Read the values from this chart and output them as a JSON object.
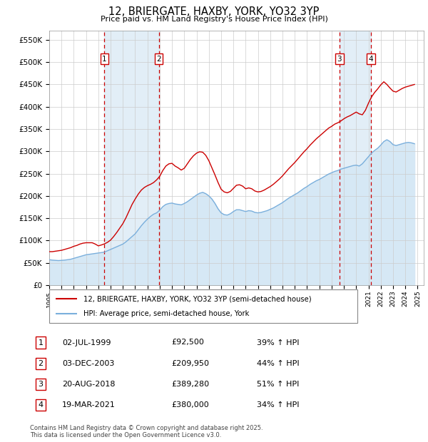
{
  "title": "12, BRIERGATE, HAXBY, YORK, YO32 3YP",
  "subtitle": "Price paid vs. HM Land Registry's House Price Index (HPI)",
  "ylim": [
    0,
    570000
  ],
  "yticks": [
    0,
    50000,
    100000,
    150000,
    200000,
    250000,
    300000,
    350000,
    400000,
    450000,
    500000,
    550000
  ],
  "xlim_start": 1995.0,
  "xlim_end": 2025.5,
  "sale_color": "#cc0000",
  "hpi_color": "#7aafdc",
  "hpi_fill_color": "#d6e8f5",
  "grid_color": "#cccccc",
  "purchases": [
    {
      "date_num": 1999.5,
      "price": 92500,
      "label": "1"
    },
    {
      "date_num": 2003.92,
      "price": 209950,
      "label": "2"
    },
    {
      "date_num": 2018.63,
      "price": 389280,
      "label": "3"
    },
    {
      "date_num": 2021.21,
      "price": 380000,
      "label": "4"
    }
  ],
  "legend_entries": [
    {
      "label": "12, BRIERGATE, HAXBY, YORK, YO32 3YP (semi-detached house)",
      "color": "#cc0000"
    },
    {
      "label": "HPI: Average price, semi-detached house, York",
      "color": "#7aafdc"
    }
  ],
  "table_rows": [
    {
      "num": "1",
      "date": "02-JUL-1999",
      "price": "£92,500",
      "hpi": "39% ↑ HPI"
    },
    {
      "num": "2",
      "date": "03-DEC-2003",
      "price": "£209,950",
      "hpi": "44% ↑ HPI"
    },
    {
      "num": "3",
      "date": "20-AUG-2018",
      "price": "£389,280",
      "hpi": "51% ↑ HPI"
    },
    {
      "num": "4",
      "date": "19-MAR-2021",
      "price": "£380,000",
      "hpi": "34% ↑ HPI"
    }
  ],
  "footer": "Contains HM Land Registry data © Crown copyright and database right 2025.\nThis data is licensed under the Open Government Licence v3.0.",
  "hpi_data": {
    "years": [
      1995.0,
      1995.25,
      1995.5,
      1995.75,
      1996.0,
      1996.25,
      1996.5,
      1996.75,
      1997.0,
      1997.25,
      1997.5,
      1997.75,
      1998.0,
      1998.25,
      1998.5,
      1998.75,
      1999.0,
      1999.25,
      1999.5,
      1999.75,
      2000.0,
      2000.25,
      2000.5,
      2000.75,
      2001.0,
      2001.25,
      2001.5,
      2001.75,
      2002.0,
      2002.25,
      2002.5,
      2002.75,
      2003.0,
      2003.25,
      2003.5,
      2003.75,
      2004.0,
      2004.25,
      2004.5,
      2004.75,
      2005.0,
      2005.25,
      2005.5,
      2005.75,
      2006.0,
      2006.25,
      2006.5,
      2006.75,
      2007.0,
      2007.25,
      2007.5,
      2007.75,
      2008.0,
      2008.25,
      2008.5,
      2008.75,
      2009.0,
      2009.25,
      2009.5,
      2009.75,
      2010.0,
      2010.25,
      2010.5,
      2010.75,
      2011.0,
      2011.25,
      2011.5,
      2011.75,
      2012.0,
      2012.25,
      2012.5,
      2012.75,
      2013.0,
      2013.25,
      2013.5,
      2013.75,
      2014.0,
      2014.25,
      2014.5,
      2014.75,
      2015.0,
      2015.25,
      2015.5,
      2015.75,
      2016.0,
      2016.25,
      2016.5,
      2016.75,
      2017.0,
      2017.25,
      2017.5,
      2017.75,
      2018.0,
      2018.25,
      2018.5,
      2018.75,
      2019.0,
      2019.25,
      2019.5,
      2019.75,
      2020.0,
      2020.25,
      2020.5,
      2020.75,
      2021.0,
      2021.25,
      2021.5,
      2021.75,
      2022.0,
      2022.25,
      2022.5,
      2022.75,
      2023.0,
      2023.25,
      2023.5,
      2023.75,
      2024.0,
      2024.25,
      2024.5,
      2024.75
    ],
    "values": [
      57000,
      56000,
      55500,
      55000,
      55500,
      56000,
      57000,
      58000,
      60000,
      62000,
      64000,
      66000,
      68000,
      69000,
      70000,
      71000,
      72000,
      73000,
      74000,
      77000,
      80000,
      83000,
      86000,
      89000,
      92000,
      97000,
      103000,
      109000,
      115000,
      124000,
      133000,
      141000,
      148000,
      154000,
      159000,
      162000,
      168000,
      176000,
      181000,
      183000,
      184000,
      182000,
      181000,
      180000,
      183000,
      187000,
      192000,
      197000,
      202000,
      206000,
      208000,
      205000,
      200000,
      193000,
      183000,
      171000,
      162000,
      158000,
      157000,
      160000,
      165000,
      169000,
      169000,
      167000,
      165000,
      167000,
      166000,
      163000,
      162000,
      163000,
      165000,
      167000,
      170000,
      173000,
      177000,
      181000,
      185000,
      190000,
      195000,
      199000,
      203000,
      207000,
      212000,
      217000,
      221000,
      226000,
      230000,
      234000,
      237000,
      241000,
      245000,
      249000,
      252000,
      255000,
      257000,
      260000,
      262000,
      264000,
      266000,
      268000,
      269000,
      267000,
      272000,
      280000,
      288000,
      296000,
      302000,
      307000,
      314000,
      322000,
      326000,
      322000,
      315000,
      313000,
      315000,
      317000,
      319000,
      320000,
      319000,
      317000
    ]
  },
  "sold_line_data": {
    "years": [
      1995.0,
      1995.25,
      1995.5,
      1995.75,
      1996.0,
      1996.25,
      1996.5,
      1996.75,
      1997.0,
      1997.25,
      1997.5,
      1997.75,
      1998.0,
      1998.25,
      1998.5,
      1998.75,
      1999.0,
      1999.25,
      1999.5,
      1999.75,
      2000.0,
      2000.25,
      2000.5,
      2000.75,
      2001.0,
      2001.25,
      2001.5,
      2001.75,
      2002.0,
      2002.25,
      2002.5,
      2002.75,
      2003.0,
      2003.25,
      2003.5,
      2003.75,
      2004.0,
      2004.25,
      2004.5,
      2004.75,
      2005.0,
      2005.25,
      2005.5,
      2005.75,
      2006.0,
      2006.25,
      2006.5,
      2006.75,
      2007.0,
      2007.25,
      2007.5,
      2007.75,
      2008.0,
      2008.25,
      2008.5,
      2008.75,
      2009.0,
      2009.25,
      2009.5,
      2009.75,
      2010.0,
      2010.25,
      2010.5,
      2010.75,
      2011.0,
      2011.25,
      2011.5,
      2011.75,
      2012.0,
      2012.25,
      2012.5,
      2012.75,
      2013.0,
      2013.25,
      2013.5,
      2013.75,
      2014.0,
      2014.25,
      2014.5,
      2014.75,
      2015.0,
      2015.25,
      2015.5,
      2015.75,
      2016.0,
      2016.25,
      2016.5,
      2016.75,
      2017.0,
      2017.25,
      2017.5,
      2017.75,
      2018.0,
      2018.25,
      2018.5,
      2018.75,
      2019.0,
      2019.25,
      2019.5,
      2019.75,
      2020.0,
      2020.25,
      2020.5,
      2020.75,
      2021.0,
      2021.25,
      2021.5,
      2021.75,
      2022.0,
      2022.25,
      2022.5,
      2022.75,
      2023.0,
      2023.25,
      2023.5,
      2023.75,
      2024.0,
      2024.25,
      2024.5,
      2024.75
    ],
    "values": [
      75000,
      75000,
      76000,
      77000,
      78000,
      80000,
      82000,
      84000,
      87000,
      89000,
      92000,
      94000,
      95000,
      95000,
      95000,
      92000,
      88000,
      90000,
      92500,
      96000,
      101000,
      109000,
      118000,
      128000,
      138000,
      151000,
      166000,
      181000,
      193000,
      204000,
      213000,
      219000,
      223000,
      226000,
      230000,
      236000,
      244000,
      257000,
      267000,
      272000,
      273000,
      267000,
      263000,
      258000,
      262000,
      272000,
      282000,
      290000,
      296000,
      299000,
      298000,
      291000,
      279000,
      263000,
      247000,
      230000,
      215000,
      209000,
      207000,
      210000,
      217000,
      224000,
      225000,
      222000,
      216000,
      218000,
      216000,
      211000,
      209000,
      210000,
      213000,
      217000,
      221000,
      226000,
      232000,
      238000,
      245000,
      253000,
      261000,
      268000,
      275000,
      283000,
      291000,
      299000,
      306000,
      314000,
      321000,
      328000,
      334000,
      340000,
      346000,
      352000,
      356000,
      361000,
      364000,
      368000,
      373000,
      377000,
      380000,
      384000,
      388000,
      384000,
      382000,
      392000,
      408000,
      422000,
      432000,
      440000,
      449000,
      456000,
      450000,
      442000,
      435000,
      433000,
      437000,
      441000,
      444000,
      446000,
      448000,
      450000
    ]
  }
}
